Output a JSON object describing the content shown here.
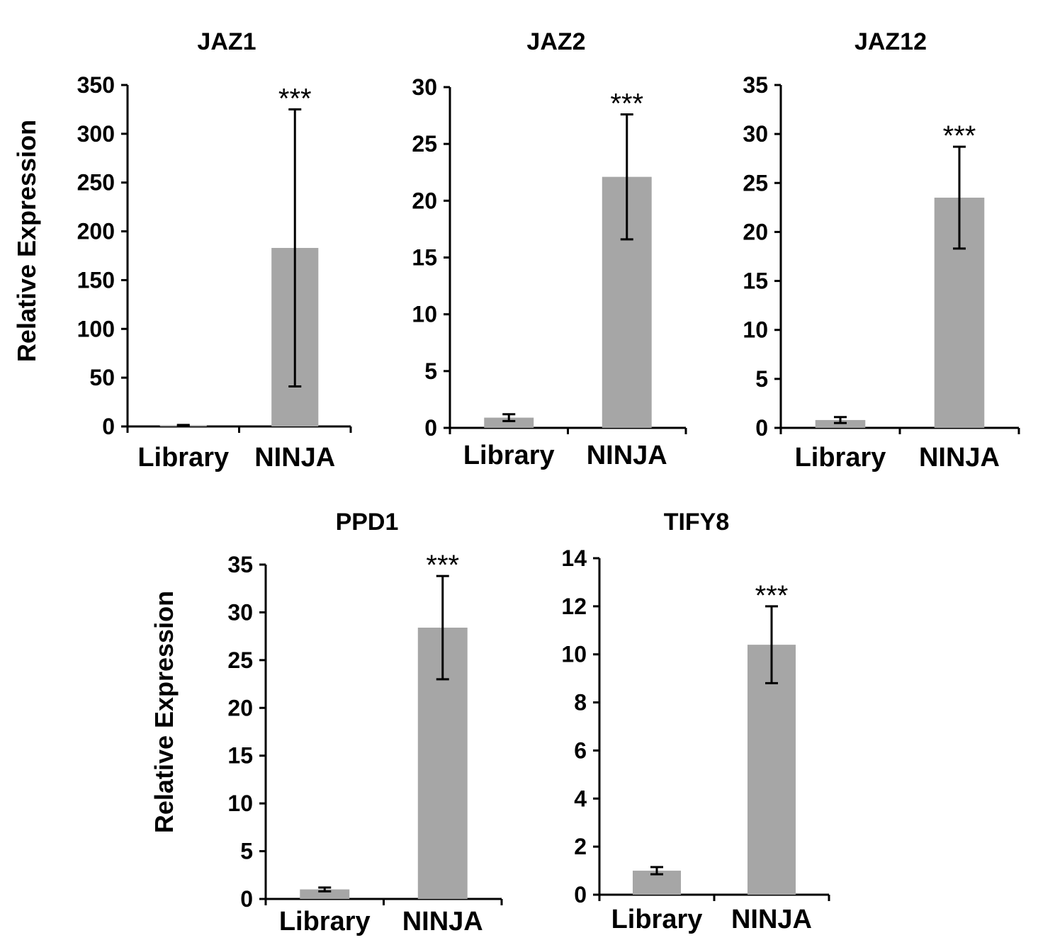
{
  "chart_data": [
    {
      "type": "bar",
      "title": "JAZ1",
      "ylabel": "Relative Expression",
      "categories": [
        "Library",
        "NINJA"
      ],
      "values": [
        1,
        183
      ],
      "error": [
        0.5,
        142
      ],
      "significance": [
        "",
        "***"
      ],
      "ylim": [
        0,
        350
      ],
      "yticks": [
        0,
        50,
        100,
        150,
        200,
        250,
        300,
        350
      ],
      "bar_color": "#a6a6a6"
    },
    {
      "type": "bar",
      "title": "JAZ2",
      "ylabel": "",
      "categories": [
        "Library",
        "NINJA"
      ],
      "values": [
        0.9,
        22.1
      ],
      "error": [
        0.3,
        5.5
      ],
      "significance": [
        "",
        "***"
      ],
      "ylim": [
        0,
        30
      ],
      "yticks": [
        0,
        5,
        10,
        15,
        20,
        25,
        30
      ],
      "bar_color": "#a6a6a6"
    },
    {
      "type": "bar",
      "title": "JAZ12",
      "ylabel": "",
      "categories": [
        "Library",
        "NINJA"
      ],
      "values": [
        0.8,
        23.5
      ],
      "error": [
        0.3,
        5.2
      ],
      "significance": [
        "",
        "***"
      ],
      "ylim": [
        0,
        35
      ],
      "yticks": [
        0,
        5,
        10,
        15,
        20,
        25,
        30,
        35
      ],
      "bar_color": "#a6a6a6"
    },
    {
      "type": "bar",
      "title": "PPD1",
      "ylabel": "Relative Expression",
      "categories": [
        "Library",
        "NINJA"
      ],
      "values": [
        1,
        28.4
      ],
      "error": [
        0.2,
        5.4
      ],
      "significance": [
        "",
        "***"
      ],
      "ylim": [
        0,
        35
      ],
      "yticks": [
        0,
        5,
        10,
        15,
        20,
        25,
        30,
        35
      ],
      "bar_color": "#a6a6a6"
    },
    {
      "type": "bar",
      "title": "TIFY8",
      "ylabel": "",
      "categories": [
        "Library",
        "NINJA"
      ],
      "values": [
        1,
        10.4
      ],
      "error": [
        0.15,
        1.6
      ],
      "significance": [
        "",
        "***"
      ],
      "ylim": [
        0,
        14
      ],
      "yticks": [
        0,
        2,
        4,
        6,
        8,
        10,
        12,
        14
      ],
      "bar_color": "#a6a6a6"
    }
  ]
}
